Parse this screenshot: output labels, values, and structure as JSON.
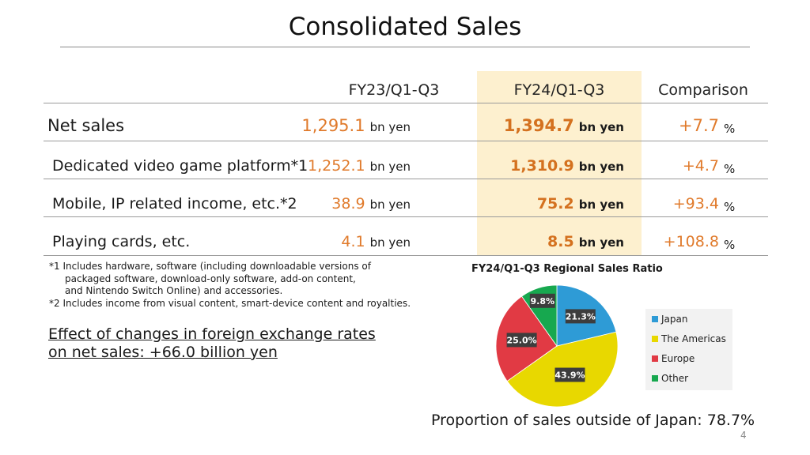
{
  "slide": {
    "title": "Consolidated Sales",
    "page_number": "4"
  },
  "table": {
    "headers": [
      "FY23/Q1-Q3",
      "FY24/Q1-Q3",
      "Comparison"
    ],
    "unit": "bn yen",
    "percent_sign": "%",
    "rows": [
      {
        "label": "Net sales",
        "fy23": "1,295.1",
        "fy24": "1,394.7",
        "change": "+7.7"
      },
      {
        "label": "Dedicated video game platform*1",
        "fy23": "1,252.1",
        "fy24": "1,310.9",
        "change": "+4.7"
      },
      {
        "label": "Mobile, IP related income, etc.*2",
        "fy23": "38.9",
        "fy24": "75.2",
        "change": "+93.4"
      },
      {
        "label": "Playing cards, etc.",
        "fy23": "4.1",
        "fy24": "8.5",
        "change": "+108.8"
      }
    ]
  },
  "notes": {
    "note1_line1": "*1 Includes hardware, software (including downloadable versions of",
    "note1_line2": "packaged software, download-only software, add-on content,",
    "note1_line3": "and Nintendo Switch Online) and accessories.",
    "note2": "*2 Includes income from visual content, smart-device content and royalties."
  },
  "fx_effect": {
    "line1": "Effect of changes in foreign exchange rates",
    "line2": "on net sales: +66.0 billion yen"
  },
  "footer": "Proportion of sales outside of Japan: 78.7%",
  "chart_data": {
    "type": "pie",
    "title": "FY24/Q1-Q3 Regional Sales Ratio",
    "categories": [
      "Japan",
      "The Americas",
      "Europe",
      "Other"
    ],
    "values": [
      21.3,
      43.9,
      25.0,
      9.8
    ],
    "labels": [
      "21.3%",
      "43.9%",
      "25.0%",
      "9.8%"
    ],
    "colors": [
      "#2e9bd6",
      "#e8d800",
      "#e13a44",
      "#17a84f"
    ],
    "start": "12 o'clock, clockwise",
    "legend_position": "right"
  }
}
